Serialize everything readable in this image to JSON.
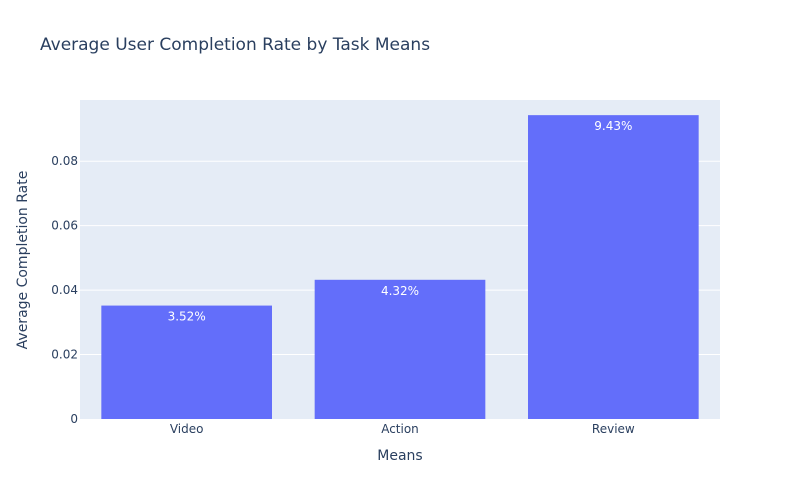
{
  "chart_data": {
    "type": "bar",
    "title": "Average User Completion Rate by Task Means",
    "xlabel": "Means",
    "ylabel": "Average Completion Rate",
    "categories": [
      "Video",
      "Action",
      "Review"
    ],
    "values": [
      0.0352,
      0.0432,
      0.0943
    ],
    "data_labels": [
      "3.52%",
      "4.32%",
      "9.43%"
    ],
    "ylim": [
      0,
      0.099
    ],
    "yticks": [
      0,
      0.02,
      0.04,
      0.06,
      0.08
    ],
    "ytick_labels": [
      "0",
      "0.02",
      "0.04",
      "0.06",
      "0.08"
    ],
    "grid": true,
    "colors": {
      "bar": "#636efa",
      "plot_bg": "#e5ecf6",
      "grid": "#ffffff",
      "text": "#2a3f5f"
    }
  }
}
